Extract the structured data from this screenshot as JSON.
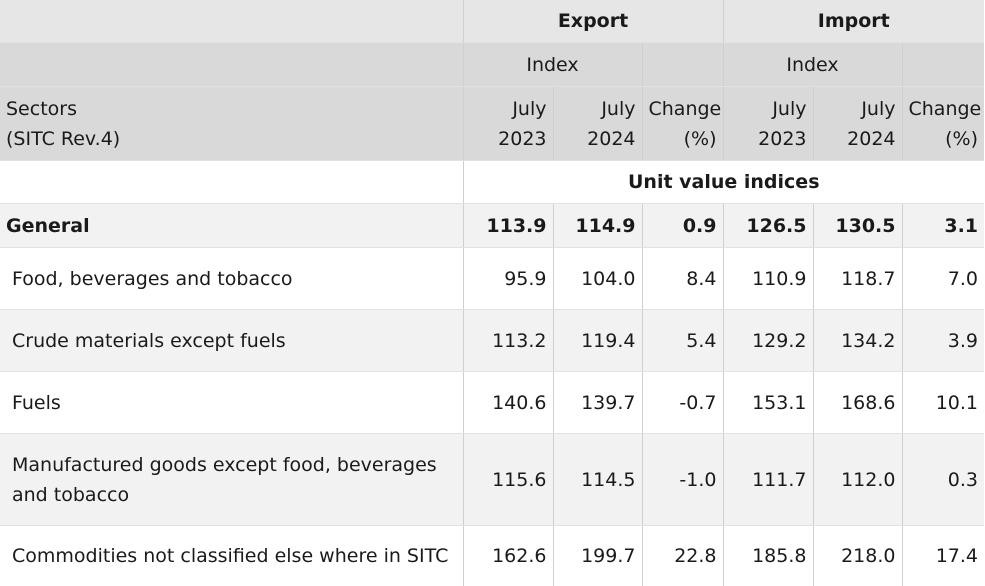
{
  "header": {
    "export": "Export",
    "import": "Import",
    "index": "Index",
    "sectors_line1": "Sectors",
    "sectors_line2": "(SITC Rev.4)",
    "col_month": "July",
    "year_a": "2023",
    "year_b": "2024",
    "change_line1": "Change",
    "change_line2": "(%)",
    "subtitle": "Unit value indices"
  },
  "rows": [
    {
      "label": "General",
      "values": [
        "113.9",
        "114.9",
        "0.9",
        "126.5",
        "130.5",
        "3.1"
      ]
    },
    {
      "label": "Food, beverages and tobacco",
      "values": [
        "95.9",
        "104.0",
        "8.4",
        "110.9",
        "118.7",
        "7.0"
      ]
    },
    {
      "label": "Crude materials except fuels",
      "values": [
        "113.2",
        "119.4",
        "5.4",
        "129.2",
        "134.2",
        "3.9"
      ]
    },
    {
      "label": "Fuels",
      "values": [
        "140.6",
        "139.7",
        "-0.7",
        "153.1",
        "168.6",
        "10.1"
      ]
    },
    {
      "label": "Manufactured goods except food, beverages and tobacco",
      "values": [
        "115.6",
        "114.5",
        "-1.0",
        "111.7",
        "112.0",
        "0.3"
      ]
    },
    {
      "label": "Commodities not classified else where in SITC",
      "values": [
        "162.6",
        "199.7",
        "22.8",
        "185.8",
        "218.0",
        "17.4"
      ]
    }
  ]
}
